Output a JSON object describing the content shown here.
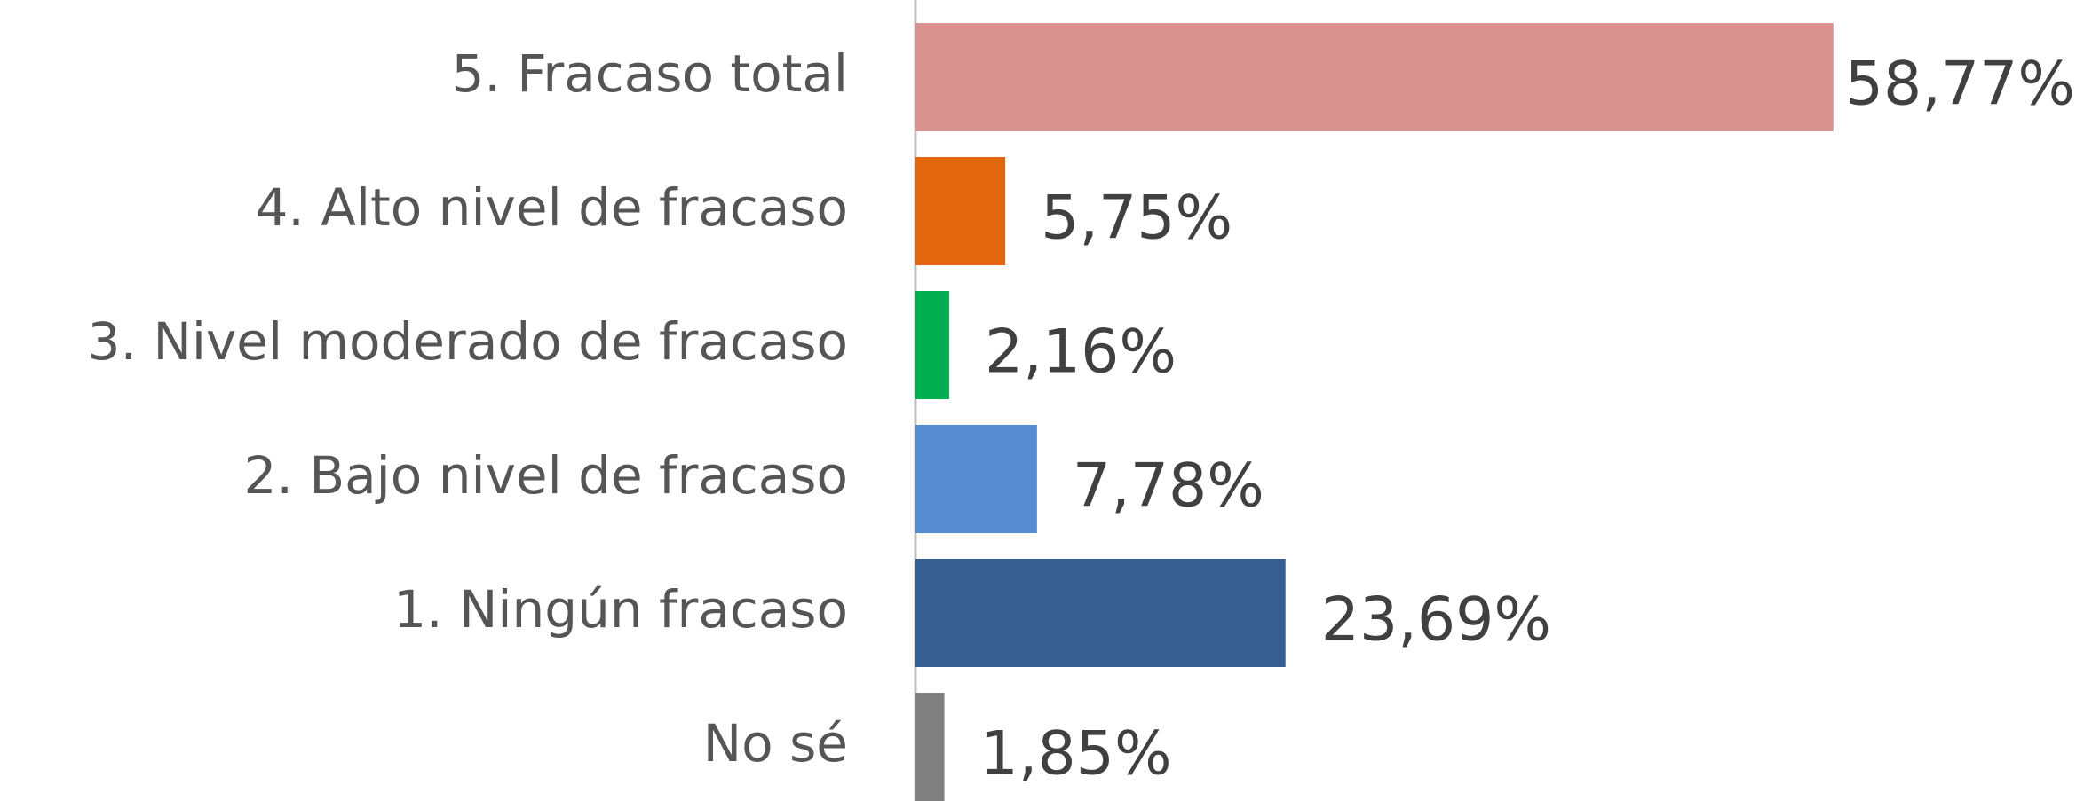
{
  "chart_data": {
    "type": "hbar",
    "categories": [
      "5. Fracaso total",
      "4. Alto nivel de fracaso",
      "3. Nivel moderado de fracaso",
      "2. Bajo nivel de fracaso",
      "1. Ningún fracaso",
      "No sé"
    ],
    "values": [
      58.77,
      5.75,
      2.16,
      7.78,
      23.69,
      1.85
    ],
    "value_labels": [
      "58,77%",
      "5,75%",
      "2,16%",
      "7,78%",
      "23,69%",
      "1,85%"
    ],
    "colors": [
      "#d8938f",
      "#e2670e",
      "#00b050",
      "#568bd1",
      "#375e91",
      "#808080"
    ]
  }
}
